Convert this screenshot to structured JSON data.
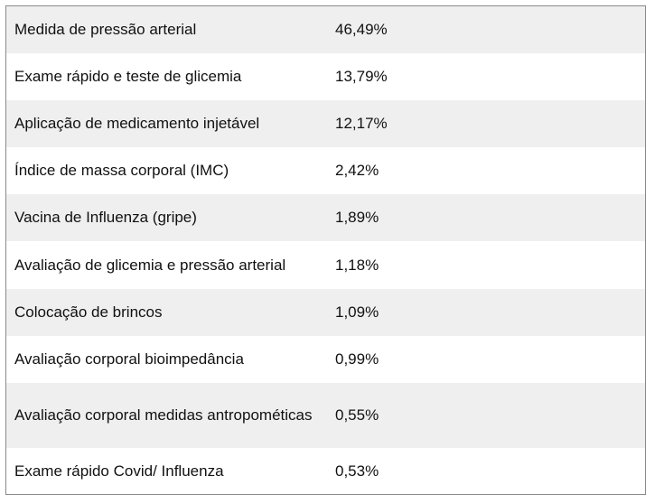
{
  "table": {
    "rows": [
      {
        "service": "Medida de pressão arterial",
        "percent": "46,49%"
      },
      {
        "service": "Exame rápido e teste de glicemia",
        "percent": "13,79%"
      },
      {
        "service": "Aplicação de medicamento injetável",
        "percent": "12,17%"
      },
      {
        "service": "Índice de massa corporal (IMC)",
        "percent": "2,42%"
      },
      {
        "service": "Vacina de Influenza (gripe)",
        "percent": "1,89%"
      },
      {
        "service": "Avaliação de glicemia e pressão arterial",
        "percent": "1,18%"
      },
      {
        "service": "Colocação de brincos",
        "percent": "1,09%"
      },
      {
        "service": "Avaliação corporal bioimpedância",
        "percent": "0,99%"
      },
      {
        "service": "Avaliação corporal medidas antropométicas",
        "percent": "0,55%"
      },
      {
        "service": "Exame rápido Covid/ Influenza",
        "percent": "0,53%"
      }
    ]
  },
  "colors": {
    "shaded_row": "#efefef",
    "plain_row": "#ffffff",
    "border": "#8a8a8a",
    "text": "#111111"
  }
}
